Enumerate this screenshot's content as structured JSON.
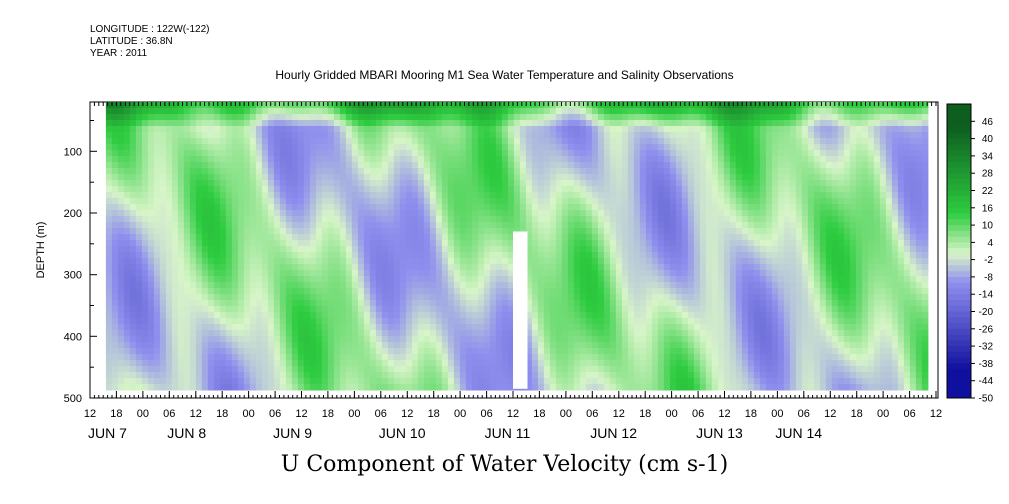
{
  "header": {
    "longitude": "LONGITUDE : 122W(-122)",
    "latitude": "LATITUDE : 36.8N",
    "year": "YEAR : 2011"
  },
  "chart_data": {
    "type": "heatmap",
    "title": "Hourly Gridded MBARI Mooring M1 Sea Water Temperature and Salinity Observations",
    "bottom_title": "U Component of Water Velocity (cm s-1)",
    "ylabel": "DEPTH (m)",
    "xlabel": "",
    "y_axis": {
      "reversed": true,
      "ylim": [
        0,
        500
      ],
      "ticks": [
        100,
        200,
        300,
        400,
        500
      ]
    },
    "x_axis": {
      "hour_ticks": [
        "12",
        "18",
        "00",
        "06",
        "12",
        "18",
        "00",
        "06",
        "12",
        "18",
        "00",
        "06",
        "12",
        "18",
        "00",
        "06",
        "12",
        "18",
        "00",
        "06",
        "12",
        "18",
        "00",
        "06",
        "12",
        "18",
        "00",
        "06",
        "12",
        "18",
        "00",
        "06",
        "12"
      ],
      "day_labels": [
        "JUN  7",
        "JUN  8",
        "JUN  9",
        "JUN 10",
        "JUN 11",
        "JUN 12",
        "JUN 13",
        "JUN 14"
      ],
      "day_label_hour_index": [
        0,
        3,
        7,
        11,
        15,
        19,
        23,
        26
      ],
      "data_range_hours": [
        0.6,
        31.6
      ]
    },
    "colorbar": {
      "levels": [
        "46",
        "40",
        "34",
        "28",
        "22",
        "16",
        "10",
        "4",
        "-2",
        "-8",
        "-14",
        "-20",
        "-26",
        "-32",
        "-38",
        "-44",
        "-50"
      ],
      "range": [
        -50,
        52
      ]
    },
    "colors": {
      "positive_strong": "#0d5e1f",
      "positive": "#2ecc40",
      "neutral": "#d8f5c8",
      "negative": "#8f8fee",
      "negative_strong": "#1010a0"
    }
  }
}
